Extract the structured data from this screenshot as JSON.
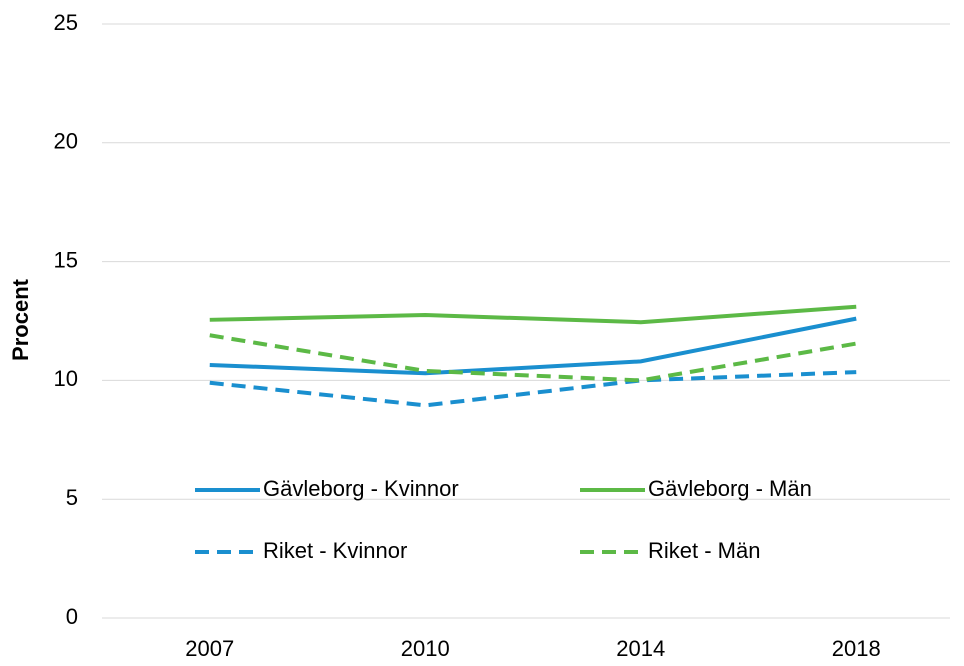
{
  "chart_data": {
    "type": "line",
    "y_label": "Procent",
    "categories": [
      "2007",
      "2010",
      "2014",
      "2018"
    ],
    "series": [
      {
        "name": "Gävleborg - Kvinnor",
        "color": "#1a8fcf",
        "dash": "solid",
        "values": [
          10.65,
          10.3,
          10.8,
          12.6
        ]
      },
      {
        "name": "Gävleborg - Män",
        "color": "#5cb946",
        "dash": "solid",
        "values": [
          12.55,
          12.75,
          12.45,
          13.1
        ]
      },
      {
        "name": "Riket - Kvinnor",
        "color": "#1a8fcf",
        "dash": "dashed",
        "values": [
          9.9,
          8.95,
          10.0,
          10.35
        ]
      },
      {
        "name": "Riket - Män",
        "color": "#5cb946",
        "dash": "dashed",
        "values": [
          11.9,
          10.4,
          10.0,
          11.55
        ]
      }
    ],
    "ylim": [
      0,
      25
    ],
    "yticks": [
      0,
      5,
      10,
      15,
      20,
      25
    ],
    "grid": true,
    "legend": "bottom"
  }
}
